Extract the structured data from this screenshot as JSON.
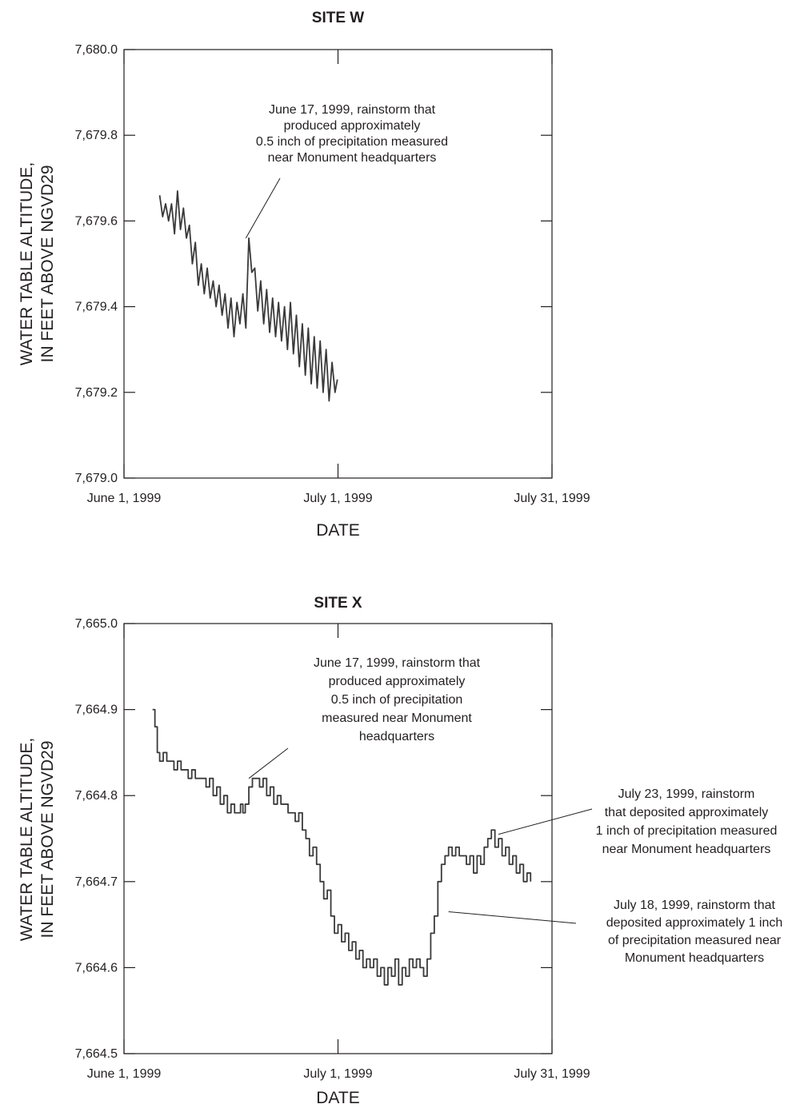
{
  "chart_data": [
    {
      "type": "line",
      "title": "SITE W",
      "xlabel": "DATE",
      "ylabel": [
        "WATER TABLE ALTITUDE,",
        "IN FEET ABOVE NGVD29"
      ],
      "xlim": [
        "1999-06-01",
        "1999-07-31"
      ],
      "ylim": [
        7679.0,
        7680.0
      ],
      "x_ticks": [
        {
          "date": "1999-06-01",
          "label": "June 1, 1999"
        },
        {
          "date": "1999-07-01",
          "label": "July 1, 1999"
        },
        {
          "date": "1999-07-31",
          "label": "July 31, 1999"
        }
      ],
      "y_ticks": [
        {
          "value": 7679.0,
          "label": "7,679.0"
        },
        {
          "value": 7679.2,
          "label": "7,679.2"
        },
        {
          "value": 7679.4,
          "label": "7,679.4"
        },
        {
          "value": 7679.6,
          "label": "7,679.6"
        },
        {
          "value": 7679.8,
          "label": "7,679.8"
        },
        {
          "value": 7680.0,
          "label": "7,680.0"
        }
      ],
      "grid": false,
      "series": [
        {
          "x": [
            "1999-06-06T00",
            "1999-06-06T10",
            "1999-06-06T20",
            "1999-06-07T06",
            "1999-06-07T16",
            "1999-06-08T02",
            "1999-06-08T12",
            "1999-06-08T22",
            "1999-06-09T08",
            "1999-06-09T18",
            "1999-06-10T04",
            "1999-06-10T14",
            "1999-06-11T00",
            "1999-06-11T10",
            "1999-06-11T20",
            "1999-06-12T06",
            "1999-06-12T16",
            "1999-06-13T02",
            "1999-06-13T12",
            "1999-06-13T22",
            "1999-06-14T08",
            "1999-06-14T18",
            "1999-06-15T04",
            "1999-06-15T14",
            "1999-06-16T00",
            "1999-06-16T10",
            "1999-06-16T20",
            "1999-06-17T06",
            "1999-06-17T16",
            "1999-06-18T02",
            "1999-06-18T12",
            "1999-06-18T22",
            "1999-06-19T08",
            "1999-06-19T18",
            "1999-06-20T04",
            "1999-06-20T14",
            "1999-06-21T00",
            "1999-06-21T10",
            "1999-06-21T20",
            "1999-06-22T06",
            "1999-06-22T16",
            "1999-06-23T02",
            "1999-06-23T12",
            "1999-06-23T22",
            "1999-06-24T08",
            "1999-06-24T18",
            "1999-06-25T04",
            "1999-06-25T14",
            "1999-06-26T00",
            "1999-06-26T10",
            "1999-06-26T20",
            "1999-06-27T06",
            "1999-06-27T16",
            "1999-06-28T02",
            "1999-06-28T12",
            "1999-06-28T22",
            "1999-06-29T08",
            "1999-06-29T18",
            "1999-06-30T04",
            "1999-06-30T14",
            "1999-06-30T22"
          ],
          "y": [
            7679.66,
            7679.61,
            7679.64,
            7679.6,
            7679.64,
            7679.57,
            7679.67,
            7679.58,
            7679.63,
            7679.56,
            7679.59,
            7679.5,
            7679.55,
            7679.45,
            7679.5,
            7679.43,
            7679.49,
            7679.42,
            7679.46,
            7679.4,
            7679.45,
            7679.38,
            7679.43,
            7679.35,
            7679.42,
            7679.33,
            7679.41,
            7679.36,
            7679.43,
            7679.35,
            7679.56,
            7679.48,
            7679.49,
            7679.39,
            7679.46,
            7679.36,
            7679.44,
            7679.34,
            7679.42,
            7679.33,
            7679.41,
            7679.32,
            7679.4,
            7679.3,
            7679.41,
            7679.29,
            7679.38,
            7679.26,
            7679.36,
            7679.24,
            7679.35,
            7679.22,
            7679.33,
            7679.21,
            7679.32,
            7679.2,
            7679.3,
            7679.18,
            7679.27,
            7679.2,
            7679.23
          ]
        }
      ],
      "annotations": [
        {
          "lines": [
            "June 17, 1999, rainstorm that",
            "produced approximately",
            "0.5 inch of precipitation measured",
            "near Monument headquarters"
          ],
          "target": {
            "x": "1999-06-18T02",
            "y": 7679.56
          }
        }
      ]
    },
    {
      "type": "line",
      "title": "SITE X",
      "xlabel": "DATE",
      "ylabel": [
        "WATER TABLE ALTITUDE,",
        "IN FEET ABOVE NGVD29"
      ],
      "xlim": [
        "1999-06-01",
        "1999-07-31"
      ],
      "ylim": [
        7664.5,
        7665.0
      ],
      "x_ticks": [
        {
          "date": "1999-06-01",
          "label": "June 1, 1999"
        },
        {
          "date": "1999-07-01",
          "label": "July 1, 1999"
        },
        {
          "date": "1999-07-31",
          "label": "July 31, 1999"
        }
      ],
      "y_ticks": [
        {
          "value": 7664.5,
          "label": "7,664.5"
        },
        {
          "value": 7664.6,
          "label": "7,664.6"
        },
        {
          "value": 7664.7,
          "label": "7,664.7"
        },
        {
          "value": 7664.8,
          "label": "7,664.8"
        },
        {
          "value": 7664.9,
          "label": "7,664.9"
        },
        {
          "value": 7665.0,
          "label": "7,665.0"
        }
      ],
      "grid": false,
      "series": [
        {
          "x": [
            "1999-06-05T00",
            "1999-06-05T08",
            "1999-06-05T16",
            "1999-06-06T00",
            "1999-06-06T12",
            "1999-06-07T00",
            "1999-06-07T12",
            "1999-06-08T00",
            "1999-06-08T12",
            "1999-06-09T00",
            "1999-06-09T12",
            "1999-06-10T00",
            "1999-06-10T12",
            "1999-06-11T00",
            "1999-06-11T12",
            "1999-06-12T00",
            "1999-06-12T12",
            "1999-06-13T00",
            "1999-06-13T12",
            "1999-06-14T00",
            "1999-06-14T12",
            "1999-06-15T00",
            "1999-06-15T12",
            "1999-06-16T00",
            "1999-06-16T12",
            "1999-06-17T00",
            "1999-06-17T08",
            "1999-06-17T16",
            "1999-06-18T00",
            "1999-06-18T12",
            "1999-06-19T00",
            "1999-06-19T12",
            "1999-06-20T00",
            "1999-06-20T12",
            "1999-06-21T00",
            "1999-06-21T12",
            "1999-06-22T00",
            "1999-06-22T12",
            "1999-06-23T00",
            "1999-06-23T12",
            "1999-06-24T00",
            "1999-06-24T12",
            "1999-06-25T00",
            "1999-06-25T12",
            "1999-06-26T00",
            "1999-06-26T12",
            "1999-06-27T00",
            "1999-06-27T12",
            "1999-06-28T00",
            "1999-06-28T12",
            "1999-06-29T00",
            "1999-06-29T12",
            "1999-06-30T00",
            "1999-06-30T12",
            "1999-07-01T00",
            "1999-07-01T12",
            "1999-07-02T00",
            "1999-07-02T12",
            "1999-07-03T00",
            "1999-07-03T12",
            "1999-07-04T00",
            "1999-07-04T12",
            "1999-07-05T00",
            "1999-07-05T12",
            "1999-07-06T00",
            "1999-07-06T12",
            "1999-07-07T00",
            "1999-07-07T12",
            "1999-07-08T00",
            "1999-07-08T12",
            "1999-07-09T00",
            "1999-07-09T12",
            "1999-07-10T00",
            "1999-07-10T12",
            "1999-07-11T00",
            "1999-07-11T12",
            "1999-07-12T00",
            "1999-07-12T12",
            "1999-07-13T00",
            "1999-07-13T12",
            "1999-07-14T00",
            "1999-07-14T12",
            "1999-07-15T00",
            "1999-07-15T12",
            "1999-07-16T00",
            "1999-07-16T12",
            "1999-07-17T00",
            "1999-07-17T12",
            "1999-07-18T00",
            "1999-07-18T12",
            "1999-07-19T00",
            "1999-07-19T12",
            "1999-07-20T00",
            "1999-07-20T12",
            "1999-07-21T00",
            "1999-07-21T12",
            "1999-07-22T00",
            "1999-07-22T12",
            "1999-07-23T00",
            "1999-07-23T12",
            "1999-07-24T00",
            "1999-07-24T12",
            "1999-07-25T00",
            "1999-07-25T12",
            "1999-07-26T00",
            "1999-07-26T12",
            "1999-07-27T00",
            "1999-07-27T12",
            "1999-07-28T00"
          ],
          "y": [
            7664.9,
            7664.88,
            7664.85,
            7664.84,
            7664.85,
            7664.84,
            7664.84,
            7664.83,
            7664.84,
            7664.83,
            7664.83,
            7664.82,
            7664.83,
            7664.82,
            7664.82,
            7664.82,
            7664.81,
            7664.82,
            7664.8,
            7664.81,
            7664.79,
            7664.8,
            7664.78,
            7664.79,
            7664.78,
            7664.78,
            7664.79,
            7664.78,
            7664.79,
            7664.81,
            7664.82,
            7664.82,
            7664.81,
            7664.82,
            7664.8,
            7664.81,
            7664.79,
            7664.8,
            7664.79,
            7664.79,
            7664.78,
            7664.78,
            7664.77,
            7664.78,
            7664.76,
            7664.75,
            7664.73,
            7664.74,
            7664.72,
            7664.7,
            7664.68,
            7664.69,
            7664.66,
            7664.64,
            7664.65,
            7664.63,
            7664.64,
            7664.62,
            7664.63,
            7664.61,
            7664.62,
            7664.6,
            7664.61,
            7664.6,
            7664.61,
            7664.59,
            7664.6,
            7664.58,
            7664.6,
            7664.59,
            7664.61,
            7664.58,
            7664.6,
            7664.59,
            7664.61,
            7664.6,
            7664.61,
            7664.6,
            7664.59,
            7664.61,
            7664.64,
            7664.66,
            7664.7,
            7664.72,
            7664.73,
            7664.74,
            7664.73,
            7664.74,
            7664.73,
            7664.73,
            7664.72,
            7664.73,
            7664.71,
            7664.73,
            7664.72,
            7664.74,
            7664.75,
            7664.76,
            7664.74,
            7664.75,
            7664.73,
            7664.74,
            7664.72,
            7664.73,
            7664.71,
            7664.72,
            7664.7,
            7664.71,
            7664.7
          ],
          "step": true
        }
      ],
      "annotations": [
        {
          "lines": [
            "June 17, 1999, rainstorm that",
            "produced approximately",
            "0.5 inch of precipitation",
            "measured near Monument",
            "headquarters"
          ],
          "target": {
            "x": "1999-06-18T12",
            "y": 7664.82
          }
        },
        {
          "lines": [
            "July 23, 1999, rainstorm",
            "that deposited approximately",
            "1 inch of precipitation measured",
            "near Monument headquarters"
          ],
          "target": {
            "x": "1999-07-23T12",
            "y": 7664.755
          }
        },
        {
          "lines": [
            "July 18, 1999, rainstorm that",
            "deposited approximately 1 inch",
            "of precipitation measured near",
            "Monument headquarters"
          ],
          "target": {
            "x": "1999-07-16T12",
            "y": 7664.665
          }
        }
      ]
    }
  ]
}
